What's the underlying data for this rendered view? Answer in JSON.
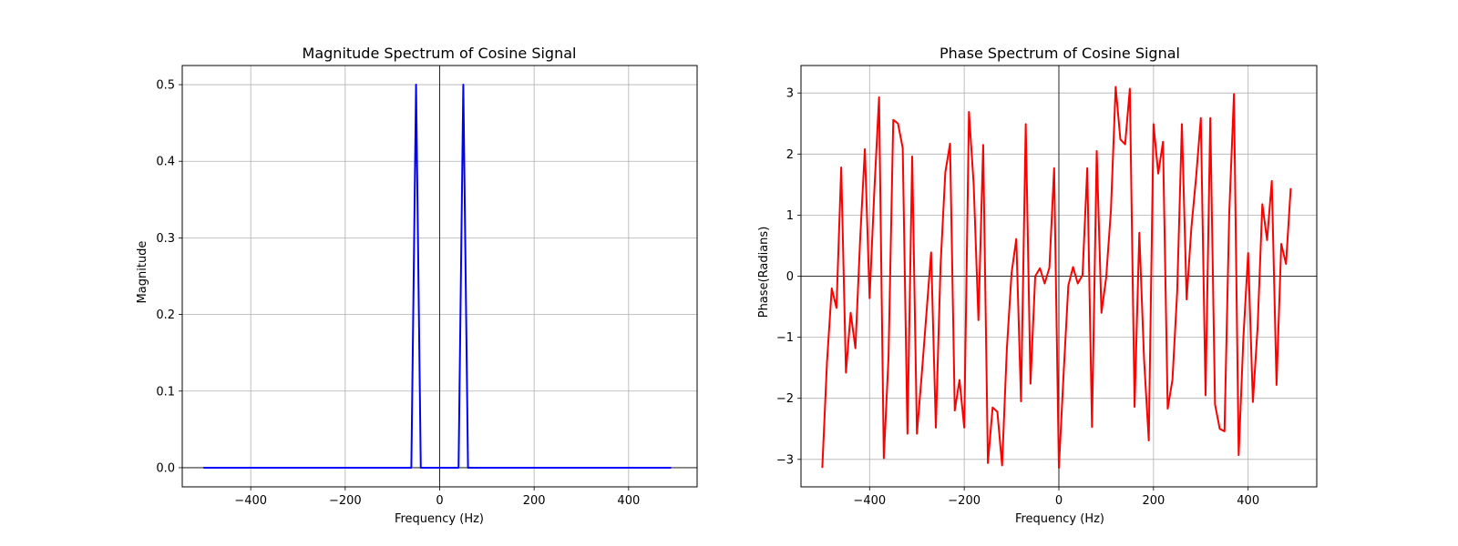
{
  "chart_data": [
    {
      "type": "line",
      "title": "Magnitude Spectrum of Cosine Signal",
      "xlabel": "Frequency (Hz)",
      "ylabel": "Magnitude",
      "xlim": [
        -545,
        545
      ],
      "ylim": [
        -0.025,
        0.525
      ],
      "xticks": [
        -400,
        -200,
        0,
        200,
        400
      ],
      "xtick_labels": [
        "−400",
        "−200",
        "0",
        "200",
        "400"
      ],
      "yticks": [
        0.0,
        0.1,
        0.2,
        0.3,
        0.4,
        0.5
      ],
      "ytick_labels": [
        "0.0",
        "0.1",
        "0.2",
        "0.3",
        "0.4",
        "0.5"
      ],
      "grid": true,
      "color": "#0000ff",
      "zero_lines": {
        "horizontal": true,
        "vertical": true
      },
      "series": [
        {
          "x": [
            -500,
            -60,
            -50,
            -40,
            40,
            50,
            60,
            490
          ],
          "y": [
            0,
            0,
            0.5,
            0,
            0,
            0.5,
            0,
            0
          ]
        }
      ]
    },
    {
      "type": "line",
      "title": "Phase Spectrum of Cosine Signal",
      "xlabel": "Frequency (Hz)",
      "ylabel": "Phase(Radians)",
      "xlim": [
        -545,
        545
      ],
      "ylim": [
        -3.45,
        3.45
      ],
      "xticks": [
        -400,
        -200,
        0,
        200,
        400
      ],
      "xtick_labels": [
        "−400",
        "−200",
        "0",
        "200",
        "400"
      ],
      "yticks": [
        -3,
        -2,
        -1,
        0,
        1,
        2,
        3
      ],
      "ytick_labels": [
        "−3",
        "−2",
        "−1",
        "0",
        "1",
        "2",
        "3"
      ],
      "grid": true,
      "color": "#ff0000",
      "zero_lines": {
        "horizontal": true,
        "vertical": true
      },
      "series": [
        {
          "x": [
            -500,
            -490,
            -480,
            -470,
            -460,
            -450,
            -440,
            -430,
            -420,
            -410,
            -400,
            -390,
            -380,
            -370,
            -360,
            -350,
            -340,
            -330,
            -320,
            -310,
            -300,
            -290,
            -280,
            -270,
            -260,
            -250,
            -240,
            -230,
            -220,
            -210,
            -200,
            -190,
            -180,
            -170,
            -160,
            -150,
            -140,
            -130,
            -120,
            -110,
            -100,
            -90,
            -80,
            -70,
            -60,
            -50,
            -40,
            -30,
            -20,
            -10,
            0,
            10,
            20,
            30,
            40,
            50,
            60,
            70,
            80,
            90,
            100,
            110,
            120,
            130,
            140,
            150,
            160,
            170,
            180,
            190,
            200,
            210,
            220,
            230,
            240,
            250,
            260,
            270,
            280,
            290,
            300,
            310,
            320,
            330,
            340,
            350,
            360,
            370,
            380,
            390,
            400,
            410,
            420,
            430,
            440,
            450,
            460,
            470,
            480,
            490
          ],
          "y": [
            -3.14,
            -1.4,
            -0.2,
            -0.52,
            1.78,
            -1.58,
            -0.6,
            -1.18,
            0.6,
            2.08,
            -0.36,
            1.4,
            2.93,
            -2.98,
            -1.33,
            2.56,
            2.5,
            2.1,
            -2.58,
            1.96,
            -2.58,
            -1.63,
            -0.62,
            0.39,
            -2.48,
            0.18,
            1.7,
            2.17,
            -2.2,
            -1.7,
            -2.48,
            2.69,
            1.5,
            -0.72,
            2.15,
            -3.06,
            -2.15,
            -2.22,
            -3.1,
            -1.2,
            0.05,
            0.61,
            -2.05,
            2.49,
            -1.76,
            0.0,
            0.13,
            -0.12,
            0.14,
            1.77,
            -3.14,
            -1.6,
            -0.15,
            0.15,
            -0.12,
            0.02,
            1.77,
            -2.47,
            2.05,
            -0.6,
            -0.02,
            1.08,
            3.1,
            2.24,
            2.16,
            3.07,
            -2.14,
            0.71,
            -1.36,
            -2.69,
            2.49,
            1.68,
            2.2,
            -2.17,
            -1.7,
            -0.26,
            2.49,
            -0.38,
            0.79,
            1.62,
            2.59,
            -1.95,
            2.59,
            -2.1,
            -2.5,
            -2.54,
            1.02,
            2.98,
            -2.93,
            -1.0,
            0.38,
            -2.06,
            -0.84,
            1.18,
            0.59,
            1.56,
            -1.78,
            0.53,
            0.2,
            1.44
          ]
        }
      ]
    }
  ]
}
